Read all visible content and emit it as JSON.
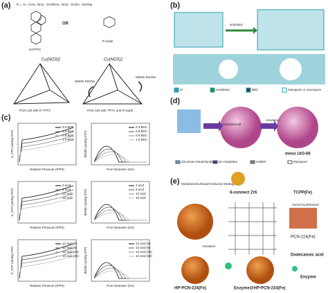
{
  "panel_a": {
    "label": "(a)",
    "substituents": "R = -H, -CH3, -NH2, -CH2NH2, -NO2, -SO3H, -SO3Na",
    "linker": "H4TPTC",
    "or": "OR",
    "isoph": "R-isoph",
    "metal_left": "Cu(NO3)2",
    "metal_right": "Cu(NO3)2",
    "room_left": "MORE ROOM",
    "room_right": "MORE ROOM",
    "caption_left": "PCN-125 with R-TPTC",
    "caption_right": "PCN-125 with TPTC and R-isoph"
  },
  "panel_b": {
    "label": "(b)",
    "arrow": "activation",
    "legend": [
      "Zr",
      "modulator",
      "BDC",
      "mesopore or macropore"
    ]
  },
  "panel_c": {
    "label": "(c)",
    "plots": [
      {
        "y_label": "V_STP (cm3/g STP)",
        "x_label": "Relative Pressure (P/P0)",
        "legend": [
          "0.3 BDC",
          "0.5 BDC",
          "0.8 BDC",
          "1.0 BDC"
        ]
      },
      {
        "y_label": "dV/dD (cm3/g STP)",
        "x_label": "Pore Diameter (nm)",
        "legend": [
          "0.3 BDC",
          "0.5 BDC",
          "0.8 BDC",
          "1.0 BDC"
        ]
      },
      {
        "y_label": "V_STP (cm3/g STP)",
        "x_label": "Relative Pressure (P/P0)",
        "legend": [
          "2 acid",
          "8 acid",
          "12 acid",
          "16 acid"
        ]
      },
      {
        "y_label": "dV/dD (cm3/g STP)",
        "x_label": "Pore Diameter (nm)",
        "legend": [
          "2 acid",
          "8 acid",
          "12 acid",
          "16 acid"
        ]
      },
      {
        "y_label": "V_STP (cm3/g STP)",
        "x_label": "Relative Pressure (P/P0)",
        "legend": [
          "12 acid (0)",
          "12 acid (5)",
          "12 acid (25)",
          "12 acid (35)"
        ]
      },
      {
        "y_label": "dV/dD (cm3/g STP)",
        "x_label": "Pore Diameter (nm)",
        "legend": [
          "12 acid (0)",
          "12 acid (5)",
          "12 acid (25)",
          "12 acid (35)"
        ]
      }
    ]
  },
  "panel_d": {
    "label": "(d)",
    "step1": "Solvothermal",
    "step2": "Activation",
    "product": "meso UiO-66",
    "legend": [
      "Zirconium tetrachloride",
      "DA modulator",
      "H2BDC",
      "Mesopore"
    ]
  },
  "panel_e": {
    "label": "(e)",
    "strategy": "Modulator/Surfactant-Induced Strategy",
    "cluster": "6-connect Zr6",
    "ligand": "TCPP(Fe)",
    "normal": "normal synthesized",
    "pcn": "PCN-224(Fe)",
    "activation": "Activation",
    "acid": "Dodecanoic acid",
    "hp": "HP-PCN-224(Fe)",
    "enzyme_hp": "Enzyme@HP-PCN-224(Fe)",
    "enzyme": "Enzyme"
  }
}
